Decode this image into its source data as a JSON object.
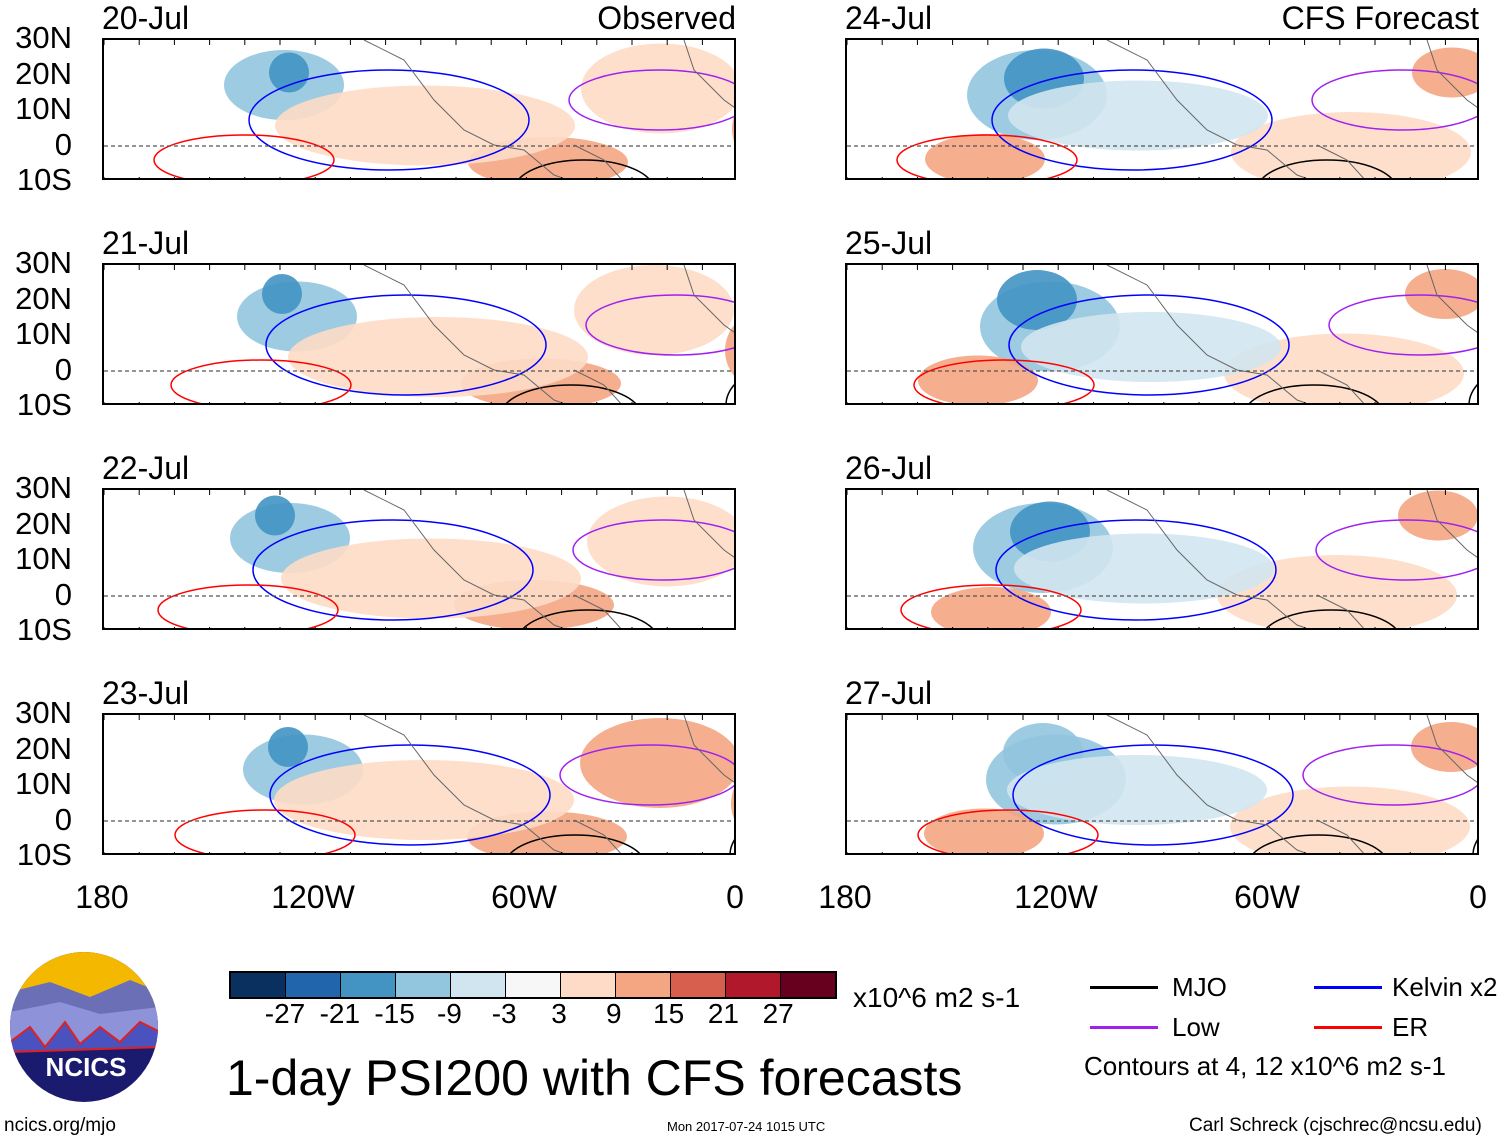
{
  "panels_left": [
    {
      "date": "20-Jul",
      "tag": "Observed"
    },
    {
      "date": "21-Jul",
      "tag": ""
    },
    {
      "date": "22-Jul",
      "tag": ""
    },
    {
      "date": "23-Jul",
      "tag": ""
    }
  ],
  "panels_right": [
    {
      "date": "24-Jul",
      "tag": "CFS Forecast"
    },
    {
      "date": "25-Jul",
      "tag": ""
    },
    {
      "date": "26-Jul",
      "tag": ""
    },
    {
      "date": "27-Jul",
      "tag": ""
    }
  ],
  "lat_labels": [
    "30N",
    "20N",
    "10N",
    "0",
    "10S"
  ],
  "lon_labels": [
    "180",
    "120W",
    "60W",
    "0"
  ],
  "colorbar": {
    "colors": [
      "#0a3060",
      "#2166ac",
      "#4393c3",
      "#92c5de",
      "#d1e5f0",
      "#f7f7f7",
      "#fddbc7",
      "#f4a582",
      "#d6604d",
      "#b2182b",
      "#67001f"
    ],
    "labels": [
      "-27",
      "-21",
      "-15",
      "-9",
      "-3",
      "3",
      "9",
      "15",
      "21",
      "27"
    ],
    "units": "x10^6 m2 s-1"
  },
  "legend": {
    "items": [
      {
        "label": "MJO",
        "color": "#000000"
      },
      {
        "label": "Kelvin x2",
        "color": "#0000ff"
      },
      {
        "label": "Low",
        "color": "#a020f0"
      },
      {
        "label": "ER",
        "color": "#ff0000"
      }
    ],
    "contours": "Contours at 4, 12 x10^6 m2 s-1"
  },
  "title": "1-day PSI200 with CFS forecasts",
  "logo_text": "NCICS",
  "footer": {
    "url": "ncics.org/mjo",
    "timestamp": "Mon 2017-07-24 1015 UTC",
    "author": "Carl Schreck (cjschrec@ncsu.edu)"
  }
}
